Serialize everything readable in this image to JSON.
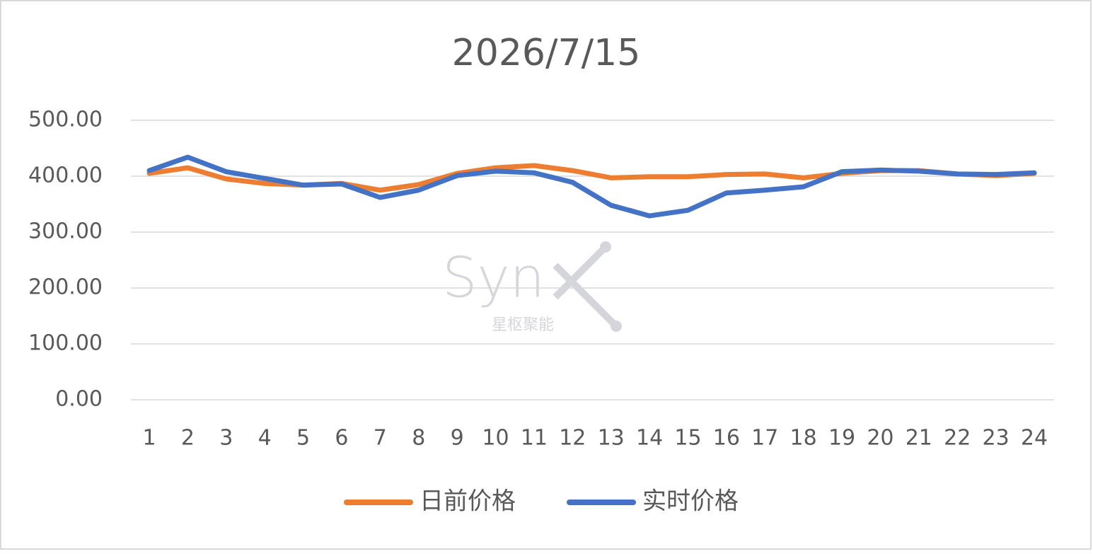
{
  "chart_data": {
    "type": "line",
    "title": "2026/7/15",
    "categories": [
      "1",
      "2",
      "3",
      "4",
      "5",
      "6",
      "7",
      "8",
      "9",
      "10",
      "11",
      "12",
      "13",
      "14",
      "15",
      "16",
      "17",
      "18",
      "19",
      "20",
      "21",
      "22",
      "23",
      "24"
    ],
    "series": [
      {
        "name": "日前价格",
        "color": "#ed7d31",
        "values": [
          405,
          415,
          395,
          387,
          384,
          387,
          375,
          385,
          405,
          415,
          419,
          410,
          397,
          399,
          399,
          403,
          404,
          397,
          405,
          410,
          410,
          404,
          401,
          405
        ]
      },
      {
        "name": "实时价格",
        "color": "#4472c4",
        "values": [
          410,
          434,
          408,
          396,
          384,
          386,
          362,
          375,
          401,
          409,
          406,
          389,
          348,
          329,
          339,
          370,
          375,
          381,
          408,
          411,
          409,
          404,
          403,
          406
        ]
      }
    ],
    "ylim": [
      0,
      500
    ],
    "yticks": [
      {
        "value": 0,
        "label": "0.00"
      },
      {
        "value": 100,
        "label": "100.00"
      },
      {
        "value": 200,
        "label": "200.00"
      },
      {
        "value": 300,
        "label": "300.00"
      },
      {
        "value": 400,
        "label": "400.00"
      },
      {
        "value": 500,
        "label": "500.00"
      }
    ],
    "grid": true,
    "legend": "bottom",
    "watermark": {
      "text": "Syn",
      "subtext": "星枢聚能"
    }
  }
}
